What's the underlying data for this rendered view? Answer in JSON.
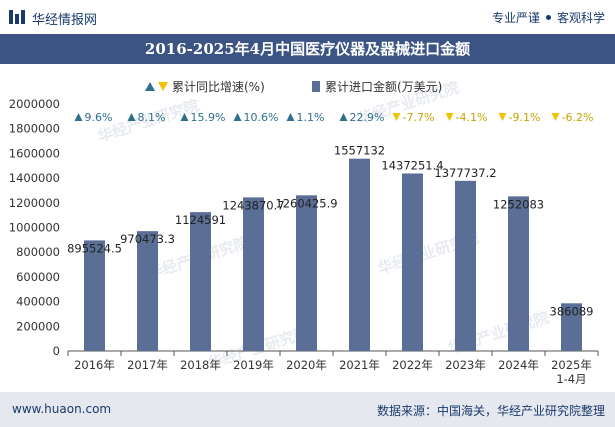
{
  "header": {
    "brand": "华经情报网",
    "tagline_left": "专业严谨",
    "tagline_right": "客观科学"
  },
  "title": "2016-2025年4月中国医疗仪器及器械进口金额",
  "footer": {
    "website": "www.huaon.com",
    "source": "数据来源：中国海关，华经产业研究院整理"
  },
  "watermark": "华经产业研究院",
  "colors": {
    "bar": "#5a6e96",
    "up_marker": "#2e6f8e",
    "down_marker": "#f2c200",
    "title_bg": "#3b5484",
    "footer_bg": "#e5e8ee"
  },
  "chart_data": {
    "type": "bar",
    "categories": [
      "2016年",
      "2017年",
      "2018年",
      "2019年",
      "2020年",
      "2021年",
      "2022年",
      "2023年",
      "2024年",
      "2025年\n1-4月"
    ],
    "series": [
      {
        "name": "累计进口金额(万美元)",
        "values": [
          895524.5,
          970473.3,
          1124591,
          1243870.7,
          1260425.9,
          1557132,
          1437251.4,
          1377737.2,
          1252083,
          386089
        ],
        "labels": [
          "895524.5",
          "970473.3",
          "1124591",
          "1243870.7",
          "1260425.9",
          "1557132",
          "1437251.4",
          "1377737.2",
          "1252083",
          "386089"
        ]
      },
      {
        "name": "累计同比增速(%)",
        "values": [
          9.6,
          8.1,
          15.9,
          10.6,
          1.1,
          22.9,
          -7.7,
          -4.1,
          -9.1,
          -6.2
        ],
        "labels": [
          "9.6%",
          "8.1%",
          "15.9%",
          "10.6%",
          "1.1%",
          "22.9%",
          "-7.7%",
          "-4.1%",
          "-9.1%",
          "-6.2%"
        ]
      }
    ],
    "ylim": [
      0,
      2000000
    ],
    "yticks": [
      0,
      200000,
      400000,
      600000,
      800000,
      1000000,
      1200000,
      1400000,
      1600000,
      1800000,
      2000000
    ],
    "legend_position": "top",
    "grid": false
  }
}
